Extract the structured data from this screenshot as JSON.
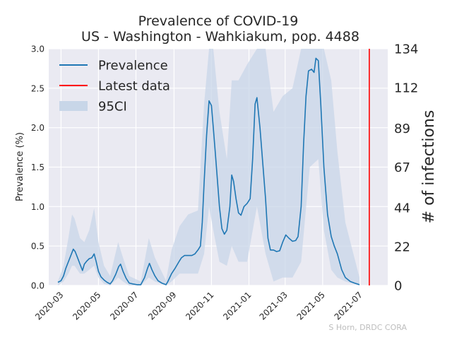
{
  "chart_data": {
    "type": "line",
    "title": "Prevalence of COVID-19",
    "subtitle": "US - Washington - Wahkiakum, pop. 4488",
    "ylabel": "Prevalence (%)",
    "y2label": "# of infections",
    "credit": "S Horn, DRDC CORA",
    "ylim": [
      0,
      3.0
    ],
    "y2lim": [
      0,
      134
    ],
    "yticks": [
      {
        "v": 0.0,
        "label": "0.0"
      },
      {
        "v": 0.5,
        "label": "0.5"
      },
      {
        "v": 1.0,
        "label": "1.0"
      },
      {
        "v": 1.5,
        "label": "1.5"
      },
      {
        "v": 2.0,
        "label": "2.0"
      },
      {
        "v": 2.5,
        "label": "2.5"
      },
      {
        "v": 3.0,
        "label": "3.0"
      }
    ],
    "y2ticks": [
      {
        "v": 0,
        "label": "0"
      },
      {
        "v": 22,
        "label": "22"
      },
      {
        "v": 44,
        "label": "44"
      },
      {
        "v": 67,
        "label": "67"
      },
      {
        "v": 89,
        "label": "89"
      },
      {
        "v": 112,
        "label": "112"
      },
      {
        "v": 134,
        "label": "134"
      }
    ],
    "xticks": [
      "2020-03-01",
      "2020-05-01",
      "2020-07-01",
      "2020-09-01",
      "2020-11-01",
      "2021-01-01",
      "2021-03-01",
      "2021-05-01",
      "2021-07-01"
    ],
    "xlim": [
      "2020-02-10",
      "2021-08-15"
    ],
    "grid": true,
    "legend_position": "top-left",
    "legend": [
      {
        "label": "Prevalence",
        "kind": "line",
        "color": "#1f77b4"
      },
      {
        "label": "Latest data",
        "kind": "line",
        "color": "#ff0000"
      },
      {
        "label": "95CI",
        "kind": "patch",
        "color": "#c8d6e8"
      }
    ],
    "latest_data_date": "2021-07-16",
    "series": [
      {
        "name": "Prevalence",
        "color": "#1f77b4",
        "points": [
          [
            "2020-02-25",
            0.04
          ],
          [
            "2020-03-01",
            0.06
          ],
          [
            "2020-03-05",
            0.12
          ],
          [
            "2020-03-09",
            0.22
          ],
          [
            "2020-03-13",
            0.3
          ],
          [
            "2020-03-17",
            0.38
          ],
          [
            "2020-03-21",
            0.46
          ],
          [
            "2020-03-24",
            0.43
          ],
          [
            "2020-03-28",
            0.35
          ],
          [
            "2020-04-01",
            0.27
          ],
          [
            "2020-04-05",
            0.19
          ],
          [
            "2020-04-08",
            0.27
          ],
          [
            "2020-04-12",
            0.31
          ],
          [
            "2020-04-16",
            0.34
          ],
          [
            "2020-04-20",
            0.35
          ],
          [
            "2020-04-24",
            0.4
          ],
          [
            "2020-04-27",
            0.31
          ],
          [
            "2020-05-01",
            0.18
          ],
          [
            "2020-05-05",
            0.11
          ],
          [
            "2020-05-10",
            0.07
          ],
          [
            "2020-05-15",
            0.04
          ],
          [
            "2020-05-20",
            0.02
          ],
          [
            "2020-05-24",
            0.06
          ],
          [
            "2020-05-29",
            0.14
          ],
          [
            "2020-06-03",
            0.24
          ],
          [
            "2020-06-06",
            0.27
          ],
          [
            "2020-06-10",
            0.18
          ],
          [
            "2020-06-15",
            0.09
          ],
          [
            "2020-06-20",
            0.03
          ],
          [
            "2020-06-26",
            0.02
          ],
          [
            "2020-07-03",
            0.01
          ],
          [
            "2020-07-09",
            0.01
          ],
          [
            "2020-07-15",
            0.1
          ],
          [
            "2020-07-20",
            0.22
          ],
          [
            "2020-07-23",
            0.28
          ],
          [
            "2020-07-27",
            0.2
          ],
          [
            "2020-08-01",
            0.12
          ],
          [
            "2020-08-06",
            0.06
          ],
          [
            "2020-08-12",
            0.03
          ],
          [
            "2020-08-19",
            0.01
          ],
          [
            "2020-08-22",
            0.05
          ],
          [
            "2020-08-28",
            0.15
          ],
          [
            "2020-09-03",
            0.22
          ],
          [
            "2020-09-09",
            0.3
          ],
          [
            "2020-09-13",
            0.35
          ],
          [
            "2020-09-18",
            0.38
          ],
          [
            "2020-09-24",
            0.38
          ],
          [
            "2020-09-30",
            0.38
          ],
          [
            "2020-10-05",
            0.4
          ],
          [
            "2020-10-10",
            0.45
          ],
          [
            "2020-10-14",
            0.5
          ],
          [
            "2020-10-17",
            0.8
          ],
          [
            "2020-10-20",
            1.3
          ],
          [
            "2020-10-24",
            1.9
          ],
          [
            "2020-10-28",
            2.34
          ],
          [
            "2020-11-01",
            2.28
          ],
          [
            "2020-11-04",
            2.0
          ],
          [
            "2020-11-07",
            1.7
          ],
          [
            "2020-11-10",
            1.4
          ],
          [
            "2020-11-14",
            1.0
          ],
          [
            "2020-11-18",
            0.72
          ],
          [
            "2020-11-22",
            0.65
          ],
          [
            "2020-11-26",
            0.7
          ],
          [
            "2020-12-01",
            1.0
          ],
          [
            "2020-12-04",
            1.4
          ],
          [
            "2020-12-07",
            1.32
          ],
          [
            "2020-12-11",
            1.1
          ],
          [
            "2020-12-15",
            0.92
          ],
          [
            "2020-12-19",
            0.89
          ],
          [
            "2020-12-24",
            1.0
          ],
          [
            "2020-12-29",
            1.04
          ],
          [
            "2021-01-03",
            1.1
          ],
          [
            "2021-01-07",
            1.6
          ],
          [
            "2021-01-11",
            2.3
          ],
          [
            "2021-01-14",
            2.38
          ],
          [
            "2021-01-19",
            2.0
          ],
          [
            "2021-01-24",
            1.5
          ],
          [
            "2021-01-28",
            1.1
          ],
          [
            "2021-02-01",
            0.6
          ],
          [
            "2021-02-05",
            0.45
          ],
          [
            "2021-02-10",
            0.45
          ],
          [
            "2021-02-15",
            0.43
          ],
          [
            "2021-02-20",
            0.44
          ],
          [
            "2021-02-25",
            0.55
          ],
          [
            "2021-03-02",
            0.64
          ],
          [
            "2021-03-07",
            0.6
          ],
          [
            "2021-03-13",
            0.56
          ],
          [
            "2021-03-18",
            0.57
          ],
          [
            "2021-03-22",
            0.62
          ],
          [
            "2021-03-27",
            1.0
          ],
          [
            "2021-03-31",
            1.8
          ],
          [
            "2021-04-04",
            2.4
          ],
          [
            "2021-04-08",
            2.72
          ],
          [
            "2021-04-13",
            2.74
          ],
          [
            "2021-04-17",
            2.7
          ],
          [
            "2021-04-20",
            2.88
          ],
          [
            "2021-04-24",
            2.85
          ],
          [
            "2021-04-28",
            2.3
          ],
          [
            "2021-05-03",
            1.5
          ],
          [
            "2021-05-09",
            0.9
          ],
          [
            "2021-05-15",
            0.62
          ],
          [
            "2021-05-20",
            0.5
          ],
          [
            "2021-05-25",
            0.4
          ],
          [
            "2021-06-01",
            0.2
          ],
          [
            "2021-06-07",
            0.1
          ],
          [
            "2021-06-15",
            0.05
          ],
          [
            "2021-06-22",
            0.03
          ],
          [
            "2021-06-30",
            0.01
          ]
        ]
      }
    ],
    "ci95": [
      [
        "2020-02-25",
        0.0,
        0.05
      ],
      [
        "2020-03-05",
        0.05,
        0.25
      ],
      [
        "2020-03-13",
        0.15,
        0.6
      ],
      [
        "2020-03-19",
        0.25,
        0.9
      ],
      [
        "2020-03-23",
        0.25,
        0.85
      ],
      [
        "2020-04-01",
        0.15,
        0.6
      ],
      [
        "2020-04-08",
        0.15,
        0.55
      ],
      [
        "2020-04-16",
        0.2,
        0.7
      ],
      [
        "2020-04-24",
        0.25,
        0.98
      ],
      [
        "2020-05-01",
        0.1,
        0.55
      ],
      [
        "2020-05-10",
        0.02,
        0.25
      ],
      [
        "2020-05-20",
        0.0,
        0.12
      ],
      [
        "2020-06-02",
        0.1,
        0.55
      ],
      [
        "2020-06-10",
        0.05,
        0.35
      ],
      [
        "2020-06-20",
        0.0,
        0.12
      ],
      [
        "2020-07-09",
        0.0,
        0.05
      ],
      [
        "2020-07-22",
        0.1,
        0.6
      ],
      [
        "2020-08-01",
        0.05,
        0.35
      ],
      [
        "2020-08-19",
        0.0,
        0.06
      ],
      [
        "2020-08-28",
        0.05,
        0.45
      ],
      [
        "2020-09-10",
        0.15,
        0.75
      ],
      [
        "2020-09-24",
        0.15,
        0.9
      ],
      [
        "2020-10-10",
        0.15,
        0.95
      ],
      [
        "2020-10-20",
        0.4,
        2.3
      ],
      [
        "2020-10-28",
        1.0,
        3.0
      ],
      [
        "2020-11-04",
        0.7,
        3.0
      ],
      [
        "2020-11-14",
        0.3,
        2.2
      ],
      [
        "2020-11-26",
        0.25,
        1.6
      ],
      [
        "2020-12-04",
        0.5,
        2.6
      ],
      [
        "2020-12-15",
        0.3,
        2.6
      ],
      [
        "2020-12-29",
        0.3,
        2.8
      ],
      [
        "2021-01-14",
        1.0,
        3.0
      ],
      [
        "2021-01-28",
        0.4,
        3.0
      ],
      [
        "2021-02-10",
        0.05,
        2.2
      ],
      [
        "2021-02-25",
        0.1,
        2.4
      ],
      [
        "2021-03-13",
        0.1,
        2.5
      ],
      [
        "2021-03-27",
        0.3,
        3.0
      ],
      [
        "2021-04-10",
        1.5,
        3.0
      ],
      [
        "2021-04-24",
        1.6,
        3.0
      ],
      [
        "2021-05-03",
        0.7,
        3.0
      ],
      [
        "2021-05-15",
        0.2,
        2.6
      ],
      [
        "2021-05-25",
        0.1,
        1.7
      ],
      [
        "2021-06-07",
        0.05,
        0.8
      ],
      [
        "2021-06-30",
        0.0,
        0.1
      ]
    ]
  }
}
